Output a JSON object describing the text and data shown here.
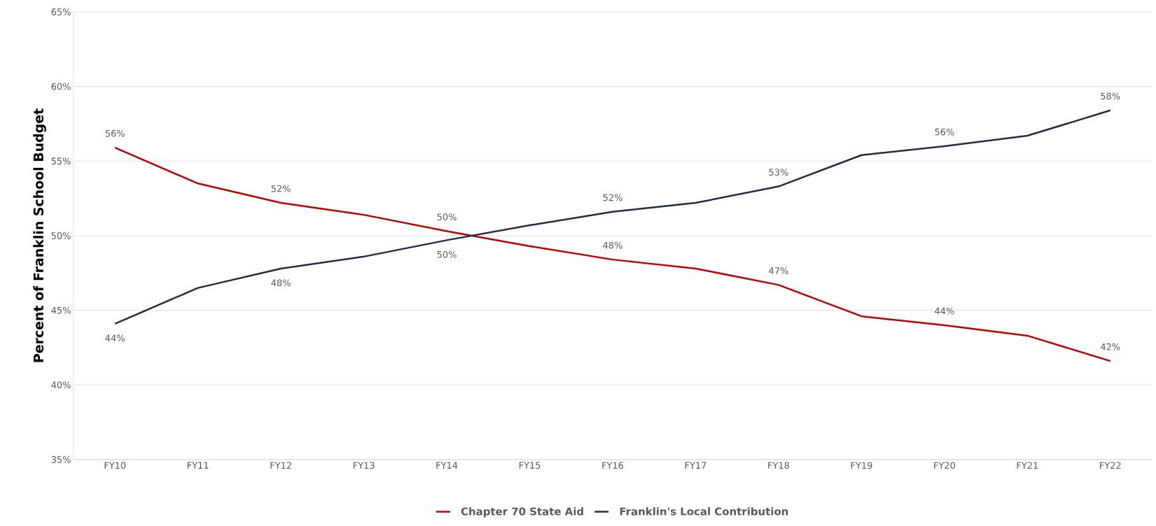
{
  "chart_data": {
    "type": "line",
    "ylabel": "Percent of Franklin School Budget",
    "categories": [
      "FY10",
      "FY11",
      "FY12",
      "FY13",
      "FY14",
      "FY15",
      "FY16",
      "FY17",
      "FY18",
      "FY19",
      "FY20",
      "FY21",
      "FY22"
    ],
    "series": [
      {
        "name": "Chapter 70 State Aid",
        "color": "#c00000",
        "values": [
          55.9,
          53.5,
          52.2,
          51.4,
          50.3,
          49.3,
          48.4,
          47.8,
          46.7,
          44.6,
          44.0,
          43.3,
          41.6
        ],
        "value_labels": [
          "56%",
          null,
          "52%",
          null,
          "50%",
          null,
          "48%",
          null,
          "47%",
          null,
          "44%",
          null,
          "42%"
        ]
      },
      {
        "name": "Franklin's Local Contribution",
        "color": "#1f2d47",
        "values": [
          44.1,
          46.5,
          47.8,
          48.6,
          49.7,
          50.7,
          51.6,
          52.2,
          53.3,
          55.4,
          56.0,
          56.7,
          58.4
        ],
        "value_labels": [
          "44%",
          null,
          "48%",
          null,
          "50%",
          null,
          "52%",
          null,
          "53%",
          null,
          "56%",
          null,
          "58%"
        ]
      }
    ],
    "ylim": [
      35,
      65
    ],
    "yticks": [
      {
        "value": 35,
        "label": "35%"
      },
      {
        "value": 40,
        "label": "40%"
      },
      {
        "value": 45,
        "label": "45%"
      },
      {
        "value": 50,
        "label": "50%"
      },
      {
        "value": 55,
        "label": "55%"
      },
      {
        "value": 60,
        "label": "60%"
      },
      {
        "value": 65,
        "label": "65%"
      }
    ],
    "grid": "y",
    "legend": "bottom",
    "marker": "none",
    "line_style": "solid"
  }
}
